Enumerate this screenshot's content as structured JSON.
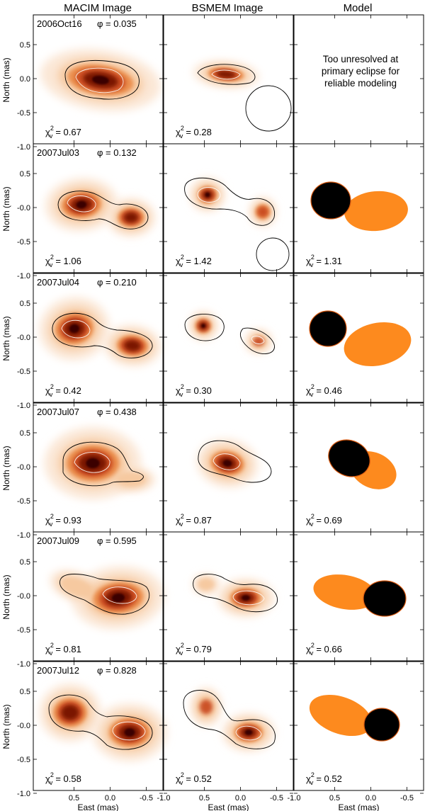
{
  "figure": {
    "column_titles": [
      "MACIM Image",
      "BSMEM Image",
      "Model"
    ],
    "y_axis_label": "North (mas)",
    "x_axis_label": "East (mas)",
    "x_ticks": [
      "0.5",
      "0.0",
      "-0.5",
      "-1.0"
    ],
    "y_ticks": [
      "0.5",
      "0.0",
      "-0.5",
      "-1.0"
    ],
    "y_ticks_first_row": [
      "0.5",
      "0.0",
      "-0.5",
      "-1.0"
    ],
    "y_ticks_other_rows": [
      "0.5",
      "-0.0",
      "-0.5",
      "-1.0"
    ],
    "colors": {
      "faint": "#fbe7d6",
      "light": "#f6c9a0",
      "mid": "#eb8f4f",
      "strong": "#c8461a",
      "dark": "#7a1606",
      "core": "#3a0600",
      "model_primary": "#000000",
      "model_secondary": "#fd8a1e",
      "model_rim": "#d85a10"
    },
    "model_note": [
      "Too unresolved at",
      "primary eclipse for",
      "reliable modeling"
    ],
    "chi_symbol": "χ",
    "chi_subscript": "v",
    "chi_superscript": "2",
    "rows": [
      {
        "date": "2006Oct16",
        "phi": "φ = 0.035",
        "chi_macim": "= 0.67",
        "chi_bsmem": "= 0.28",
        "chi_model": null
      },
      {
        "date": "2007Jul03",
        "phi": "φ = 0.132",
        "chi_macim": "= 1.06",
        "chi_bsmem": "= 1.42",
        "chi_model": "= 1.31"
      },
      {
        "date": "2007Jul04",
        "phi": "φ = 0.210",
        "chi_macim": "= 0.42",
        "chi_bsmem": "= 0.30",
        "chi_model": "= 0.46"
      },
      {
        "date": "2007Jul07",
        "phi": "φ = 0.438",
        "chi_macim": "= 0.93",
        "chi_bsmem": "= 0.87",
        "chi_model": "= 0.69"
      },
      {
        "date": "2007Jul09",
        "phi": "φ = 0.595",
        "chi_macim": "= 0.81",
        "chi_bsmem": "= 0.79",
        "chi_model": "= 0.66"
      },
      {
        "date": "2007Jul12",
        "phi": "φ = 0.828",
        "chi_macim": "= 0.58",
        "chi_bsmem": "= 0.52",
        "chi_model": "= 0.52"
      }
    ]
  }
}
